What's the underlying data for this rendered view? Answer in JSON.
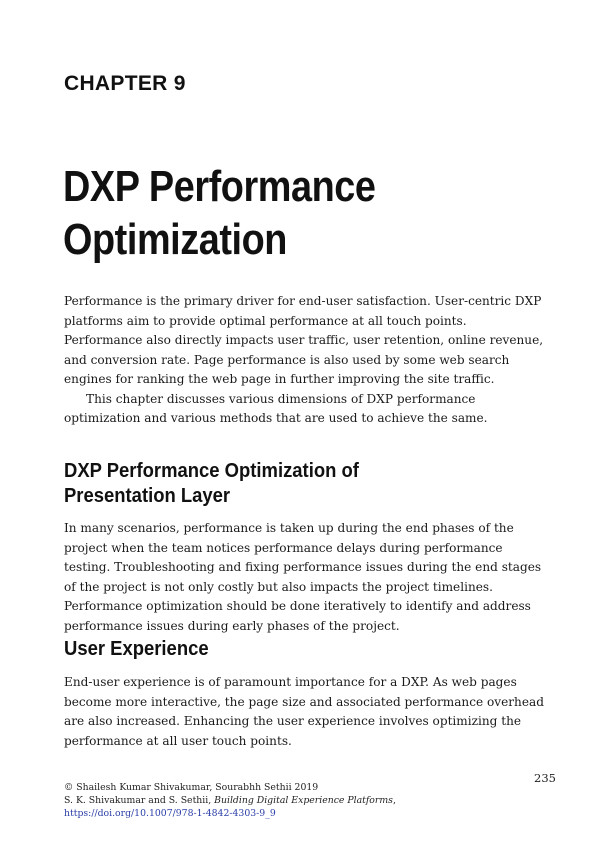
{
  "chapter": {
    "label": "CHAPTER 9",
    "title": "DXP Performance Optimization"
  },
  "intro": {
    "paragraph1": "Performance is the primary driver for end-user satisfaction. User-centric DXP platforms aim to provide optimal performance at all touch points. Performance also directly impacts user traffic, user retention, online revenue, and conversion rate. Page performance is also used by some web search engines for ranking the web page in further improving the site traffic.",
    "paragraph2": "This chapter discusses various dimensions of DXP performance optimization and various methods that are used to achieve the same."
  },
  "sections": [
    {
      "heading": "DXP Performance Optimization of Presentation Layer",
      "paragraph": "In many scenarios, performance is taken up during the end phases of the project when the team notices performance delays during performance testing. Troubleshooting and fixing performance issues during the end stages of the project is not only costly but also impacts the project timelines. Performance optimization should be done iteratively to identify and address performance issues during early phases of the project."
    },
    {
      "heading": "User Experience",
      "paragraph": "End-user experience is of paramount importance for a DXP. As web pages become more interactive, the page size and associated performance overhead are also increased. Enhancing the user experience involves optimizing the performance at all user touch points."
    }
  ],
  "page_number": "235",
  "footer": {
    "copyright": "© Shailesh Kumar Shivakumar, Sourabhh Sethii 2019",
    "citation_authors": "S. K. Shivakumar and S. Sethii, ",
    "citation_title": "Building Digital Experience Platforms",
    "citation_end": ",",
    "doi_link": "https://doi.org/10.1007/978-1-4842-4303-9_9"
  }
}
